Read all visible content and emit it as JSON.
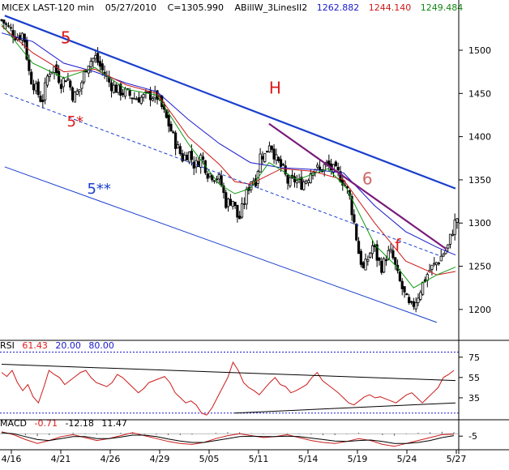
{
  "chart_data": [
    {
      "type": "candlestick",
      "panel": "price",
      "header": {
        "symbol": "MICEX LAST-120 min",
        "date": "05/27/2010",
        "close_label": "C=1305.990",
        "indicator_name": "ABillW_3LinesII2",
        "indicator_values": [
          {
            "text": "1262.882",
            "color": "#1a1acc"
          },
          {
            "text": "1244.140",
            "color": "#cc1a1a"
          },
          {
            "text": "1249.484",
            "color": "#118811"
          }
        ]
      },
      "ylim": [
        1168,
        1545
      ],
      "y_ticks": [
        1500,
        1450,
        1400,
        1350,
        1300,
        1250,
        1200
      ],
      "x_ticks": [
        "4/16",
        "4/21",
        "4/26",
        "4/29",
        "5/05",
        "5/11",
        "5/14",
        "5/19",
        "5/24",
        "5/27"
      ],
      "bar_count": 200,
      "close_path": [
        [
          0,
          1535
        ],
        [
          5,
          1525
        ],
        [
          10,
          1515
        ],
        [
          14,
          1520
        ],
        [
          18,
          1470
        ],
        [
          22,
          1455
        ],
        [
          26,
          1440
        ],
        [
          30,
          1475
        ],
        [
          34,
          1480
        ],
        [
          38,
          1462
        ],
        [
          42,
          1470
        ],
        [
          46,
          1445
        ],
        [
          50,
          1455
        ],
        [
          55,
          1485
        ],
        [
          60,
          1492
        ],
        [
          65,
          1475
        ],
        [
          70,
          1460
        ],
        [
          75,
          1453
        ],
        [
          80,
          1450
        ],
        [
          85,
          1445
        ],
        [
          90,
          1445
        ],
        [
          95,
          1448
        ],
        [
          100,
          1446
        ],
        [
          104,
          1428
        ],
        [
          108,
          1410
        ],
        [
          112,
          1390
        ],
        [
          116,
          1375
        ],
        [
          120,
          1382
        ],
        [
          124,
          1365
        ],
        [
          128,
          1378
        ],
        [
          132,
          1358
        ],
        [
          136,
          1355
        ],
        [
          140,
          1350
        ],
        [
          144,
          1322
        ],
        [
          148,
          1328
        ],
        [
          152,
          1302
        ],
        [
          155,
          1322
        ],
        [
          158,
          1340
        ],
        [
          160,
          1350
        ],
        [
          163,
          1350
        ],
        [
          166,
          1380
        ],
        [
          169,
          1378
        ],
        [
          172,
          1395
        ],
        [
          176,
          1373
        ],
        [
          180,
          1363
        ],
        [
          184,
          1345
        ],
        [
          188,
          1350
        ],
        [
          192,
          1345
        ],
        [
          196,
          1352
        ],
        [
          200,
          1366
        ],
        [
          204,
          1360
        ],
        [
          208,
          1368
        ],
        [
          212,
          1362
        ],
        [
          216,
          1357
        ],
        [
          220,
          1345
        ],
        [
          223,
          1330
        ],
        [
          226,
          1300
        ],
        [
          229,
          1265
        ],
        [
          232,
          1245
        ],
        [
          235,
          1260
        ],
        [
          238,
          1275
        ],
        [
          241,
          1258
        ],
        [
          244,
          1248
        ],
        [
          247,
          1264
        ],
        [
          250,
          1265
        ],
        [
          254,
          1238
        ],
        [
          258,
          1218
        ],
        [
          262,
          1200
        ],
        [
          266,
          1212
        ],
        [
          270,
          1230
        ],
        [
          274,
          1245
        ],
        [
          278,
          1252
        ],
        [
          282,
          1262
        ],
        [
          286,
          1272
        ],
        [
          290,
          1298
        ],
        [
          292,
          1306
        ]
      ],
      "moving_averages": [
        {
          "color": "#1a1acc",
          "path": [
            [
              0,
              1520
            ],
            [
              20,
              1510
            ],
            [
              40,
              1485
            ],
            [
              60,
              1475
            ],
            [
              80,
              1462
            ],
            [
              100,
              1452
            ],
            [
              120,
              1420
            ],
            [
              140,
              1392
            ],
            [
              160,
              1370
            ],
            [
              180,
              1364
            ],
            [
              200,
              1362
            ],
            [
              220,
              1358
            ],
            [
              240,
              1320
            ],
            [
              260,
              1290
            ],
            [
              280,
              1272
            ],
            [
              292,
              1263
            ]
          ]
        },
        {
          "color": "#cc1a1a",
          "path": [
            [
              0,
              1528
            ],
            [
              20,
              1497
            ],
            [
              40,
              1475
            ],
            [
              60,
              1478
            ],
            [
              80,
              1460
            ],
            [
              100,
              1450
            ],
            [
              120,
              1400
            ],
            [
              140,
              1368
            ],
            [
              150,
              1348
            ],
            [
              160,
              1345
            ],
            [
              180,
              1363
            ],
            [
              200,
              1360
            ],
            [
              220,
              1350
            ],
            [
              240,
              1300
            ],
            [
              260,
              1256
            ],
            [
              280,
              1240
            ],
            [
              292,
              1244
            ]
          ]
        },
        {
          "color": "#119911",
          "path": [
            [
              0,
              1530
            ],
            [
              20,
              1485
            ],
            [
              40,
              1468
            ],
            [
              60,
              1480
            ],
            [
              80,
              1455
            ],
            [
              100,
              1448
            ],
            [
              120,
              1392
            ],
            [
              140,
              1345
            ],
            [
              150,
              1334
            ],
            [
              160,
              1340
            ],
            [
              172,
              1370
            ],
            [
              190,
              1350
            ],
            [
              210,
              1363
            ],
            [
              222,
              1340
            ],
            [
              240,
              1275
            ],
            [
              255,
              1248
            ],
            [
              265,
              1225
            ],
            [
              280,
              1240
            ],
            [
              292,
              1249
            ]
          ]
        }
      ],
      "trendlines": [
        {
          "label": "5",
          "kind": "solid",
          "color": "#1a3fcc",
          "from": [
            2,
            1540
          ],
          "to": [
            292,
            1340
          ]
        },
        {
          "label": "5*",
          "kind": "dashed",
          "color": "#1a3fcc",
          "from": [
            2,
            1450
          ],
          "to": [
            282,
            1262
          ]
        },
        {
          "label": "5**",
          "kind": "solid-thin",
          "color": "#1a3fcc",
          "from": [
            2,
            1365
          ],
          "to": [
            280,
            1185
          ]
        },
        {
          "label": "",
          "kind": "solid",
          "color": "#7a1a7a",
          "from": [
            172,
            1415
          ],
          "to": [
            286,
            1270
          ]
        }
      ],
      "annotations": [
        {
          "text": "5",
          "color": "#dd1a1a",
          "at": [
            38,
            1508
          ]
        },
        {
          "text": "5*",
          "color": "#dd1a1a",
          "at": [
            42,
            1412
          ]
        },
        {
          "text": "5**",
          "color": "#1a3fcc",
          "at": [
            55,
            1334
          ]
        },
        {
          "text": "H",
          "color": "#dd1a1a",
          "at": [
            172,
            1450
          ]
        },
        {
          "text": "6",
          "color": "#cc6666",
          "at": [
            232,
            1345
          ]
        },
        {
          "text": "f",
          "color": "#dd1a1a",
          "at": [
            253,
            1268
          ]
        }
      ]
    },
    {
      "type": "line",
      "panel": "rsi",
      "header": {
        "name": "RSI",
        "values": [
          {
            "text": "61.43",
            "color": "#dd1a1a"
          },
          {
            "text": "20.00",
            "color": "#1a1acc"
          },
          {
            "text": "80.00",
            "color": "#1a1acc"
          }
        ]
      },
      "ylim": [
        15,
        82
      ],
      "y_ticks": [
        75,
        55,
        35
      ],
      "reference_levels": [
        20,
        80
      ],
      "series": [
        {
          "values": [
            60,
            56,
            62,
            50,
            42,
            48,
            36,
            30,
            45,
            62,
            58,
            55,
            48,
            52,
            56,
            60,
            62,
            55,
            50,
            48,
            46,
            50,
            58,
            55,
            50,
            45,
            40,
            44,
            50,
            52,
            54,
            56,
            50,
            40,
            35,
            30,
            32,
            28,
            20,
            18,
            25,
            35,
            45,
            55,
            70,
            62,
            50,
            45,
            42,
            38,
            44,
            50,
            55,
            48,
            46,
            40,
            42,
            45,
            48,
            55,
            60,
            52,
            48,
            44,
            40,
            35,
            30,
            28,
            32,
            36,
            38,
            35,
            36,
            34,
            32,
            30,
            34,
            38,
            40,
            35,
            30,
            35,
            40,
            45,
            55,
            58,
            62
          ]
        }
      ],
      "trendlines": [
        {
          "from": [
            0,
            68
          ],
          "to": [
            292,
            52
          ]
        },
        {
          "from": [
            150,
            20
          ],
          "to": [
            292,
            30
          ]
        }
      ]
    },
    {
      "type": "line",
      "panel": "macd",
      "header": {
        "name": "MACD",
        "values": [
          {
            "text": "-0.71",
            "color": "#dd1a1a"
          },
          {
            "text": "-12.18",
            "color": "#000000"
          },
          {
            "text": "11.47",
            "color": "#000000"
          }
        ]
      },
      "ylim": [
        -28,
        12
      ],
      "y_ticks": [
        -5
      ],
      "series": [
        {
          "color": "#cc1a1a",
          "values": [
            4,
            -2,
            -12,
            -20,
            -14,
            -6,
            -2,
            -8,
            -14,
            -10,
            -4,
            2,
            -4,
            -10,
            -16,
            -20,
            -22,
            -18,
            -10,
            -4,
            0,
            -4,
            -8,
            -6,
            -2,
            -8,
            -14,
            -18,
            -20,
            -16,
            -10,
            -14,
            -22,
            -26,
            -20,
            -14,
            -8,
            -2,
            -1
          ]
        },
        {
          "color": "#000000",
          "values": [
            2,
            0,
            -6,
            -12,
            -14,
            -10,
            -6,
            -6,
            -10,
            -10,
            -7,
            -3,
            -3,
            -6,
            -11,
            -15,
            -18,
            -18,
            -14,
            -10,
            -6,
            -5,
            -6,
            -6,
            -5,
            -6,
            -9,
            -12,
            -15,
            -16,
            -14,
            -13,
            -16,
            -20,
            -20,
            -18,
            -14,
            -8,
            -4
          ]
        }
      ],
      "hist": [
        1,
        -1,
        -3,
        -5,
        -3,
        0,
        2,
        -1,
        -2,
        0,
        2,
        3,
        -1,
        -2,
        -3,
        -3,
        -2,
        0,
        2,
        3,
        3,
        1,
        -1,
        0,
        1,
        -1,
        -2,
        -3,
        -3,
        -1,
        2,
        0,
        -3,
        -4,
        -1,
        2,
        3,
        4,
        3
      ]
    }
  ]
}
